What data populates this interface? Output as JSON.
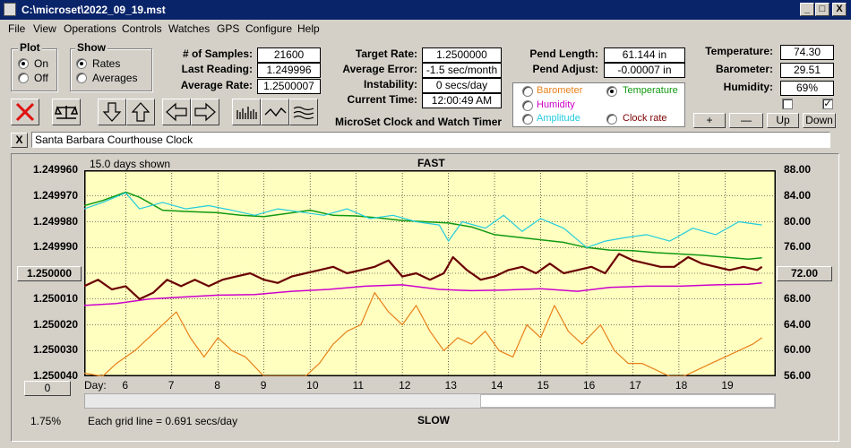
{
  "window": {
    "title": "C:\\microset\\2022_09_19.mst",
    "buttons": [
      "_",
      "□",
      "X"
    ]
  },
  "menu": [
    "File",
    "View",
    "Operations",
    "Controls",
    "Watches",
    "GPS",
    "Configure",
    "Help"
  ],
  "plot_group": {
    "title": "Plot",
    "options": [
      "On",
      "Off"
    ],
    "selected": "On"
  },
  "show_group": {
    "title": "Show",
    "options": [
      "Rates",
      "Averages"
    ],
    "selected": "Rates"
  },
  "stats1": [
    {
      "label": "# of Samples:",
      "value": "21600"
    },
    {
      "label": "Last Reading:",
      "value": "1.249996"
    },
    {
      "label": "Average Rate:",
      "value": "1.2500007"
    }
  ],
  "stats2": [
    {
      "label": "Target Rate:",
      "value": "1.2500000"
    },
    {
      "label": "Average Error:",
      "value": "-1.5 sec/month"
    },
    {
      "label": "Instability:",
      "value": "0 secs/day"
    },
    {
      "label": "Current Time:",
      "value": "12:00:49 AM"
    }
  ],
  "subtitle": "MicroSet Clock and Watch Timer",
  "pend": [
    {
      "label": "Pend Length:",
      "value": "61.144 in"
    },
    {
      "label": "Pend Adjust:",
      "value": "-0.00007 in"
    }
  ],
  "sensor_options": {
    "items": [
      {
        "label": "Barometer",
        "color": "#e8801a"
      },
      {
        "label": "Temperature",
        "color": "#119911"
      },
      {
        "label": "Humidity",
        "color": "#cc00cc"
      },
      {
        "label": "Amplitude",
        "color": "#22ccdd"
      },
      {
        "label": "Clock rate",
        "color": "#7a0000"
      }
    ],
    "selected": "Temperature"
  },
  "env": [
    {
      "label": "Temperature:",
      "value": "74.30"
    },
    {
      "label": "Barometer:",
      "value": "29.51"
    },
    {
      "label": "Humidity:",
      "value": "69%"
    }
  ],
  "checkboxes": [
    false,
    true
  ],
  "zoom_buttons": [
    "+",
    "—",
    "Up",
    "Down"
  ],
  "watch_name": "Santa Barbara Courthouse Clock",
  "close_x": "X",
  "chart_header": {
    "days_shown": "15.0 days shown",
    "fast": "FAST",
    "slow": "SLOW",
    "grid_note": "Each grid line = 0.691 secs/day",
    "percent": "1.75%",
    "left_btn": "1.250000",
    "right_btn": "72.00",
    "bottom_btn": "0",
    "day_label": "Day:"
  },
  "chart_data": {
    "type": "line",
    "x_ticks": [
      "6",
      "7",
      "8",
      "9",
      "10",
      "11",
      "12",
      "13",
      "14",
      "15",
      "16",
      "17",
      "18",
      "19"
    ],
    "xlim": [
      5.1,
      20.1
    ],
    "y_left_ticks": [
      "1.249960",
      "1.249970",
      "1.249980",
      "1.249990",
      "1.250000",
      "1.250010",
      "1.250020",
      "1.250030",
      "1.250040"
    ],
    "y_right_ticks": [
      "88.00",
      "84.00",
      "80.00",
      "76.00",
      "72.00",
      "68.00",
      "64.00",
      "60.00",
      "56.00"
    ],
    "ylim_right": [
      56,
      88
    ],
    "grid": true,
    "series": [
      {
        "name": "Temperature",
        "color": "#119911",
        "width": 1.5,
        "points": [
          [
            5.1,
            82.5
          ],
          [
            5.5,
            83.3
          ],
          [
            6.0,
            84.6
          ],
          [
            6.3,
            83.8
          ],
          [
            6.8,
            81.8
          ],
          [
            7.3,
            81.6
          ],
          [
            8.0,
            81.4
          ],
          [
            8.5,
            81.0
          ],
          [
            9.0,
            80.8
          ],
          [
            9.5,
            81.3
          ],
          [
            10.0,
            81.8
          ],
          [
            10.5,
            81.0
          ],
          [
            11.0,
            80.9
          ],
          [
            11.5,
            80.6
          ],
          [
            12.0,
            80.2
          ],
          [
            12.5,
            80.0
          ],
          [
            13.0,
            79.8
          ],
          [
            13.5,
            79.2
          ],
          [
            14.0,
            78.0
          ],
          [
            14.5,
            77.6
          ],
          [
            15.0,
            77.2
          ],
          [
            15.5,
            76.8
          ],
          [
            16.0,
            76.0
          ],
          [
            16.5,
            75.6
          ],
          [
            17.0,
            75.5
          ],
          [
            17.5,
            75.2
          ],
          [
            18.0,
            75.0
          ],
          [
            18.5,
            74.8
          ],
          [
            19.0,
            74.5
          ],
          [
            19.5,
            74.2
          ],
          [
            19.8,
            74.4
          ]
        ]
      },
      {
        "name": "Amplitude",
        "color": "#22ccdd",
        "width": 1.2,
        "points": [
          [
            5.1,
            82
          ],
          [
            5.5,
            83
          ],
          [
            6.0,
            84.5
          ],
          [
            6.3,
            82
          ],
          [
            6.8,
            83
          ],
          [
            7.3,
            82
          ],
          [
            7.8,
            82.5
          ],
          [
            8.3,
            81.8
          ],
          [
            8.8,
            81
          ],
          [
            9.3,
            82
          ],
          [
            9.8,
            81.5
          ],
          [
            10.3,
            81
          ],
          [
            10.8,
            82
          ],
          [
            11.3,
            80.5
          ],
          [
            11.8,
            81
          ],
          [
            12.3,
            80
          ],
          [
            12.8,
            79.5
          ],
          [
            13.0,
            77
          ],
          [
            13.3,
            80
          ],
          [
            13.8,
            79
          ],
          [
            14.2,
            81
          ],
          [
            14.6,
            78.5
          ],
          [
            15.0,
            80.5
          ],
          [
            15.5,
            79
          ],
          [
            16.0,
            76
          ],
          [
            16.4,
            77
          ],
          [
            16.8,
            77.5
          ],
          [
            17.3,
            78
          ],
          [
            17.8,
            77
          ],
          [
            18.3,
            79
          ],
          [
            18.8,
            78
          ],
          [
            19.3,
            80
          ],
          [
            19.8,
            79.5
          ]
        ]
      },
      {
        "name": "Humidity",
        "color": "#cc00cc",
        "width": 1.5,
        "points": [
          [
            5.1,
            67
          ],
          [
            5.8,
            67.3
          ],
          [
            6.5,
            68.0
          ],
          [
            7.2,
            68.3
          ],
          [
            8.0,
            68.6
          ],
          [
            8.8,
            68.7
          ],
          [
            9.6,
            69.2
          ],
          [
            10.4,
            69.5
          ],
          [
            11.2,
            70.0
          ],
          [
            12.0,
            70.2
          ],
          [
            12.8,
            69.5
          ],
          [
            13.5,
            69.3
          ],
          [
            14.2,
            69.4
          ],
          [
            15.0,
            69.6
          ],
          [
            15.8,
            69.2
          ],
          [
            16.5,
            69.8
          ],
          [
            17.3,
            70.0
          ],
          [
            18.0,
            70.0
          ],
          [
            18.8,
            70.2
          ],
          [
            19.5,
            70.3
          ],
          [
            19.8,
            70.5
          ]
        ]
      },
      {
        "name": "Barometer",
        "color": "#e8801a",
        "width": 1.2,
        "points": [
          [
            5.1,
            56.5
          ],
          [
            5.5,
            56
          ],
          [
            5.8,
            58
          ],
          [
            6.2,
            60
          ],
          [
            6.5,
            62
          ],
          [
            6.8,
            64
          ],
          [
            7.1,
            66
          ],
          [
            7.4,
            62
          ],
          [
            7.7,
            59
          ],
          [
            8.0,
            62
          ],
          [
            8.3,
            60
          ],
          [
            8.6,
            59
          ],
          [
            9.0,
            56
          ],
          [
            9.5,
            56
          ],
          [
            9.9,
            56
          ],
          [
            10.2,
            58
          ],
          [
            10.5,
            61
          ],
          [
            10.8,
            63
          ],
          [
            11.1,
            64
          ],
          [
            11.4,
            69
          ],
          [
            11.7,
            66
          ],
          [
            12.0,
            64
          ],
          [
            12.3,
            67
          ],
          [
            12.6,
            63
          ],
          [
            12.9,
            60
          ],
          [
            13.2,
            62
          ],
          [
            13.5,
            61
          ],
          [
            13.8,
            63
          ],
          [
            14.1,
            60
          ],
          [
            14.4,
            59
          ],
          [
            14.7,
            64
          ],
          [
            15.0,
            62
          ],
          [
            15.3,
            67
          ],
          [
            15.6,
            63
          ],
          [
            15.9,
            61
          ],
          [
            16.3,
            64
          ],
          [
            16.6,
            60
          ],
          [
            16.9,
            58
          ],
          [
            17.2,
            58
          ],
          [
            17.5,
            57
          ],
          [
            17.8,
            56
          ],
          [
            18.1,
            56
          ],
          [
            18.4,
            57
          ],
          [
            18.7,
            58
          ],
          [
            19.0,
            59
          ],
          [
            19.3,
            60
          ],
          [
            19.6,
            61
          ],
          [
            19.8,
            62
          ]
        ]
      },
      {
        "name": "Clock rate",
        "color": "#6a0000",
        "width": 2.2,
        "points": [
          [
            5.1,
            70
          ],
          [
            5.4,
            71
          ],
          [
            5.7,
            69.5
          ],
          [
            6.0,
            70
          ],
          [
            6.3,
            68
          ],
          [
            6.6,
            69
          ],
          [
            6.9,
            71
          ],
          [
            7.2,
            70
          ],
          [
            7.5,
            71
          ],
          [
            7.8,
            70
          ],
          [
            8.1,
            71
          ],
          [
            8.4,
            71.5
          ],
          [
            8.7,
            72
          ],
          [
            9.0,
            71
          ],
          [
            9.3,
            70.5
          ],
          [
            9.6,
            71.5
          ],
          [
            9.9,
            72
          ],
          [
            10.2,
            72.5
          ],
          [
            10.5,
            73
          ],
          [
            10.8,
            72
          ],
          [
            11.1,
            72.5
          ],
          [
            11.4,
            73
          ],
          [
            11.7,
            74
          ],
          [
            12.0,
            71.5
          ],
          [
            12.3,
            72
          ],
          [
            12.6,
            71
          ],
          [
            12.9,
            72
          ],
          [
            13.1,
            74.5
          ],
          [
            13.4,
            72.5
          ],
          [
            13.7,
            71
          ],
          [
            14.0,
            71.5
          ],
          [
            14.3,
            72.5
          ],
          [
            14.6,
            73
          ],
          [
            14.9,
            72
          ],
          [
            15.2,
            73.5
          ],
          [
            15.5,
            72
          ],
          [
            15.8,
            72.5
          ],
          [
            16.1,
            73
          ],
          [
            16.4,
            72
          ],
          [
            16.7,
            75
          ],
          [
            17.0,
            74
          ],
          [
            17.3,
            73.5
          ],
          [
            17.6,
            73
          ],
          [
            17.9,
            73
          ],
          [
            18.2,
            74.5
          ],
          [
            18.5,
            73.5
          ],
          [
            18.8,
            73
          ],
          [
            19.1,
            72.5
          ],
          [
            19.4,
            73
          ],
          [
            19.7,
            72.5
          ],
          [
            19.8,
            73
          ]
        ]
      }
    ]
  }
}
